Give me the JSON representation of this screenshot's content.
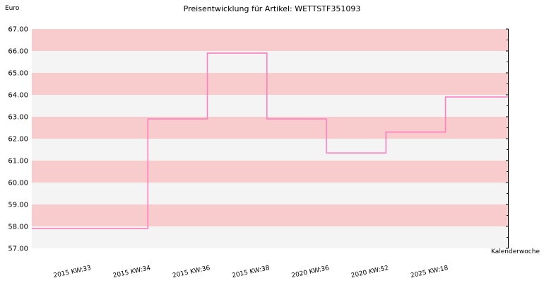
{
  "chart_data": {
    "type": "line",
    "step": true,
    "title": "Preisentwicklung für Artikel: WETTSTF351093",
    "ylabel": "Euro",
    "xlabel": "Kalenderwoche",
    "ylim": [
      57.0,
      67.0
    ],
    "yticks": [
      "57.00",
      "58.00",
      "59.00",
      "60.00",
      "61.00",
      "62.00",
      "63.00",
      "64.00",
      "65.00",
      "66.00",
      "67.00"
    ],
    "categories": [
      "2015 KW:33",
      "2015 KW:34",
      "2015 KW:36",
      "2015 KW:38",
      "2020 KW:36",
      "2020 KW:52",
      "2025 KW:18"
    ],
    "values": [
      57.9,
      62.9,
      65.9,
      62.9,
      61.35,
      62.3,
      63.9
    ],
    "band_colors": [
      "#f8cccc",
      "#f4f4f4"
    ],
    "line_color": "#ff7fbf",
    "grid": false
  }
}
